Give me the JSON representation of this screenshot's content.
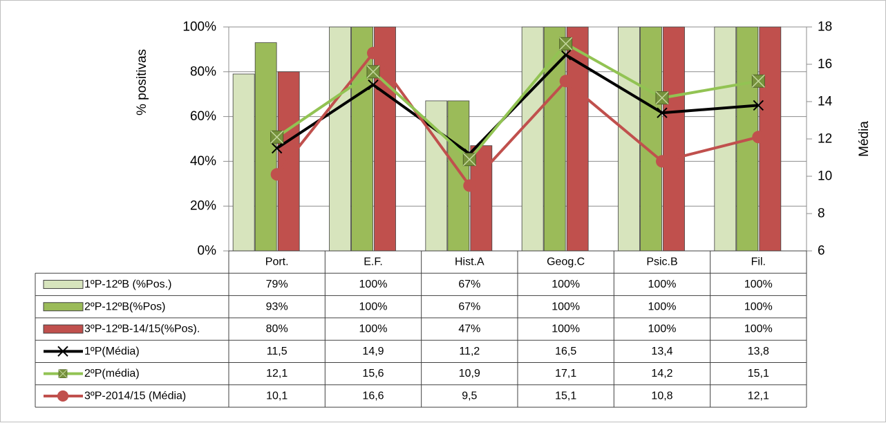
{
  "chart_data": {
    "type": "bar",
    "categories": [
      "Port.",
      "E.F.",
      "Hist.A",
      "Geog.C",
      "Psic.B",
      "Fil."
    ],
    "ylabel": "% positivas",
    "y2label": "Média",
    "ylim": [
      0,
      100
    ],
    "y2lim": [
      6,
      18
    ],
    "yticks": [
      "0%",
      "20%",
      "40%",
      "60%",
      "80%",
      "100%"
    ],
    "y2ticks": [
      "6",
      "8",
      "10",
      "12",
      "14",
      "16",
      "18"
    ],
    "grid": true,
    "legend": "data-table-below",
    "bar_series": [
      {
        "name": "1ºP-12ºB (%Pos.)",
        "values": [
          79,
          100,
          67,
          100,
          100,
          100
        ],
        "labels": [
          "79%",
          "100%",
          "67%",
          "100%",
          "100%",
          "100%"
        ],
        "color": "#d7e4bd"
      },
      {
        "name": "2ºP-12ºB(%Pos)",
        "values": [
          93,
          100,
          67,
          100,
          100,
          100
        ],
        "labels": [
          "93%",
          "100%",
          "67%",
          "100%",
          "100%",
          "100%"
        ],
        "color": "#9bbb59"
      },
      {
        "name": "3ºP-12ºB-14/15(%Pos).",
        "values": [
          80,
          100,
          47,
          100,
          100,
          100
        ],
        "labels": [
          "80%",
          "100%",
          "47%",
          "100%",
          "100%",
          "100%"
        ],
        "color": "#c0504d"
      }
    ],
    "line_series": [
      {
        "name": "1ºP(Média)",
        "values": [
          11.5,
          14.9,
          11.2,
          16.5,
          13.4,
          13.8
        ],
        "labels": [
          "11,5",
          "14,9",
          "11,2",
          "16,5",
          "13,4",
          "13,8"
        ],
        "color": "#000000",
        "marker": "x"
      },
      {
        "name": "2ºP(média)",
        "values": [
          12.1,
          15.6,
          10.9,
          17.1,
          14.2,
          15.1
        ],
        "labels": [
          "12,1",
          "15,6",
          "10,9",
          "17,1",
          "14,2",
          "15,1"
        ],
        "color": "#92c353",
        "marker": "square"
      },
      {
        "name": "3ºP-2014/15 (Média)",
        "values": [
          10.1,
          16.6,
          9.5,
          15.1,
          10.8,
          12.1
        ],
        "labels": [
          "10,1",
          "16,6",
          "9,5",
          "15,1",
          "10,8",
          "12,1"
        ],
        "color": "#c0504d",
        "marker": "circle"
      }
    ]
  }
}
